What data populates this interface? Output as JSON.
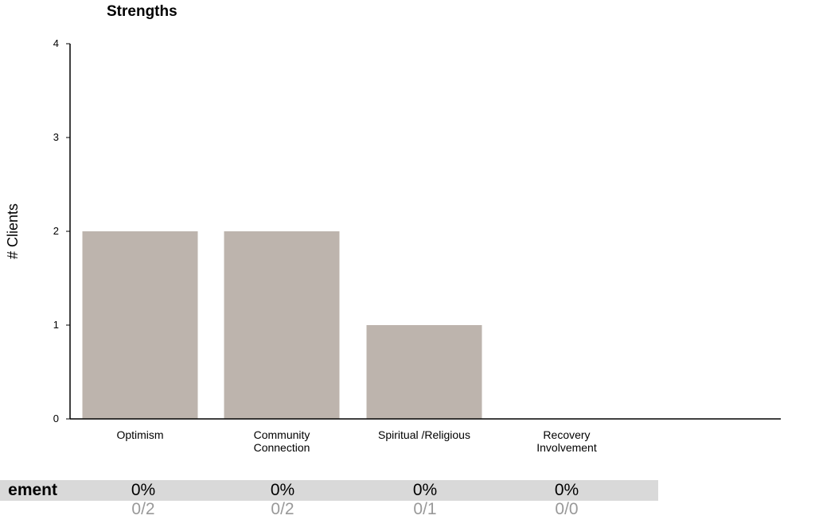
{
  "chart_data": {
    "type": "bar",
    "title": "Strengths",
    "ylabel": "# Clients",
    "xlabel": "",
    "categories": [
      [
        "Optimism"
      ],
      [
        "Community",
        "Connection"
      ],
      [
        "Spiritual /Religious"
      ],
      [
        "Recovery",
        "Involvement"
      ]
    ],
    "values": [
      2,
      2,
      1,
      0
    ],
    "ylim": [
      0,
      4
    ],
    "yticks": [
      0,
      1,
      2,
      3,
      4
    ],
    "bar_color": "#bdb4ad",
    "grid": false
  },
  "summary": {
    "row_label": "ement",
    "percentages": [
      "0%",
      "0%",
      "0%",
      "0%"
    ],
    "fractions": [
      "0/2",
      "0/2",
      "0/1",
      "0/0"
    ],
    "band_color": "#d9d9d9",
    "fraction_color": "#999999"
  }
}
